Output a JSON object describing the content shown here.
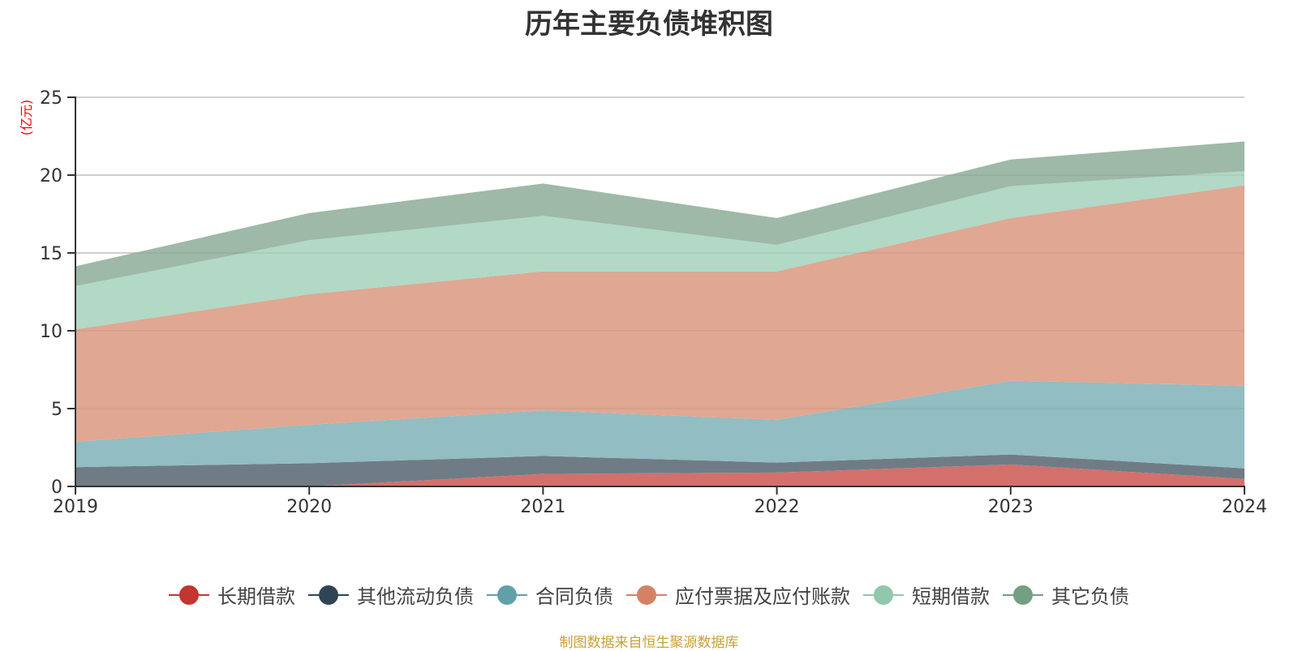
{
  "chart_data": {
    "type": "area",
    "stacked": true,
    "title": "历年主要负债堆积图",
    "ylabel": "(亿元)",
    "xlabel": "",
    "ylim": [
      0,
      25
    ],
    "yticks": [
      0,
      5,
      10,
      15,
      20,
      25
    ],
    "categories": [
      "2019",
      "2020",
      "2021",
      "2022",
      "2023",
      "2024"
    ],
    "grid": true,
    "legend_position": "bottom",
    "series": [
      {
        "name": "长期借款",
        "color": "#c23531",
        "fill": "#d4706c",
        "values": [
          0,
          0,
          0.8,
          0.89,
          1.41,
          0.48
        ]
      },
      {
        "name": "其他流动负债",
        "color": "#2f4554",
        "fill": "#6f7c86",
        "values": [
          1.24,
          1.49,
          1.16,
          0.64,
          0.64,
          0.68
        ]
      },
      {
        "name": "合同负债",
        "color": "#61a0a8",
        "fill": "#92bdc2",
        "values": [
          1.63,
          2.47,
          2.92,
          2.75,
          4.74,
          5.31
        ]
      },
      {
        "name": "应付票据及应付账款",
        "color": "#d48265",
        "fill": "#e0a793",
        "values": [
          7.22,
          8.39,
          8.94,
          9.54,
          10.45,
          12.88
        ]
      },
      {
        "name": "短期借款",
        "color": "#91c7ae",
        "fill": "#b2d8c6",
        "values": [
          2.78,
          3.47,
          3.56,
          1.7,
          2.05,
          0.9
        ]
      },
      {
        "name": "其它负债",
        "color": "#749f83",
        "fill": "#9eb9a8",
        "values": [
          1.27,
          1.74,
          2.08,
          1.72,
          1.71,
          1.91
        ]
      }
    ]
  },
  "footer": "制图数据来自恒生聚源数据库"
}
